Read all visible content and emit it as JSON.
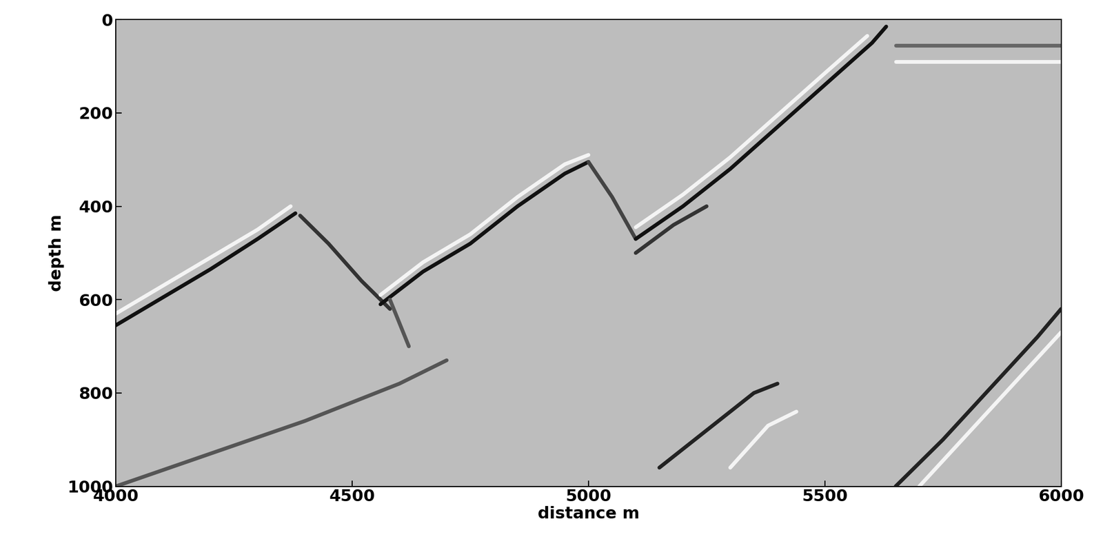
{
  "chart_data": {
    "type": "line",
    "x_label": "distance m",
    "y_label": "depth m",
    "xlim": [
      4000,
      6000
    ],
    "xticks": [
      4000,
      4500,
      5000,
      5500,
      6000
    ],
    "ylim": [
      1000,
      0
    ],
    "yticks": [
      0,
      200,
      400,
      600,
      800,
      1000
    ],
    "grid": false,
    "series": [
      {
        "color": "#111111",
        "x": [
          4000,
          4100,
          4200,
          4300,
          4380
        ],
        "values": [
          655,
          595,
          535,
          470,
          415
        ]
      },
      {
        "color": "#f4f4f4",
        "x": [
          4000,
          4100,
          4200,
          4300,
          4370
        ],
        "values": [
          630,
          570,
          510,
          450,
          400
        ]
      },
      {
        "color": "#333333",
        "x": [
          4390,
          4450,
          4520,
          4580
        ],
        "values": [
          420,
          480,
          560,
          620
        ]
      },
      {
        "color": "#111111",
        "x": [
          4560,
          4650,
          4750,
          4850,
          4950,
          5000
        ],
        "values": [
          610,
          540,
          480,
          400,
          330,
          305
        ]
      },
      {
        "color": "#f4f4f4",
        "x": [
          4560,
          4650,
          4750,
          4850,
          4950,
          5000
        ],
        "values": [
          590,
          520,
          460,
          380,
          310,
          290
        ]
      },
      {
        "color": "#444444",
        "x": [
          5000,
          5050,
          5100
        ],
        "values": [
          305,
          380,
          470
        ]
      },
      {
        "color": "#111111",
        "x": [
          5100,
          5200,
          5300,
          5400,
          5500,
          5600,
          5630
        ],
        "values": [
          470,
          400,
          320,
          230,
          140,
          50,
          15
        ]
      },
      {
        "color": "#f4f4f4",
        "x": [
          5100,
          5200,
          5300,
          5400,
          5500,
          5590
        ],
        "values": [
          445,
          375,
          295,
          205,
          115,
          35
        ]
      },
      {
        "color": "#333333",
        "x": [
          5100,
          5180,
          5250
        ],
        "values": [
          500,
          440,
          400
        ]
      },
      {
        "color": "#f4f4f4",
        "x": [
          5650,
          5800,
          6000
        ],
        "values": [
          90,
          90,
          90
        ]
      },
      {
        "color": "#666666",
        "x": [
          5650,
          5800,
          6000
        ],
        "values": [
          55,
          55,
          55
        ]
      },
      {
        "color": "#222222",
        "x": [
          5150,
          5250,
          5350,
          5400
        ],
        "values": [
          960,
          880,
          800,
          780
        ]
      },
      {
        "color": "#f4f4f4",
        "x": [
          5300,
          5380,
          5440
        ],
        "values": [
          960,
          870,
          840
        ]
      },
      {
        "color": "#222222",
        "x": [
          5650,
          5750,
          5850,
          5950,
          6000
        ],
        "values": [
          1000,
          900,
          790,
          680,
          620
        ]
      },
      {
        "color": "#f4f4f4",
        "x": [
          5700,
          5800,
          5900,
          6000
        ],
        "values": [
          1000,
          890,
          780,
          670
        ]
      },
      {
        "color": "#555555",
        "x": [
          4000,
          4200,
          4400,
          4600,
          4700
        ],
        "values": [
          1000,
          930,
          860,
          780,
          730
        ]
      },
      {
        "color": "#555555",
        "x": [
          4580,
          4600,
          4620
        ],
        "values": [
          600,
          650,
          700
        ]
      }
    ]
  }
}
